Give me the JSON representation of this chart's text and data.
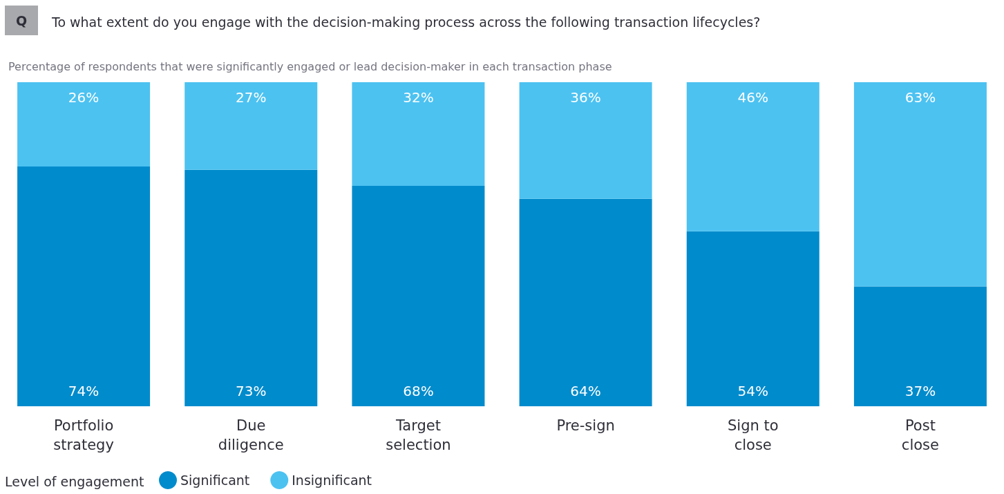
{
  "chart_data": {
    "type": "bar",
    "stacked": true,
    "title": "To what extent do you engage with the decision-making process across the following transaction lifecycles?",
    "subtitle": "Percentage of respondents that were significantly engaged or lead decision-maker in each transaction phase",
    "annotations": [
      "Q"
    ],
    "categories": [
      "Portfolio\nstrategy",
      "Due\ndiligence",
      "Target\nselection",
      "Pre-sign",
      "Sign to\nclose",
      "Post\nclose"
    ],
    "legend_title": "Level of engagement",
    "legend": "bottom left",
    "series": [
      {
        "name": "Significant",
        "color": "#008bcc",
        "values": [
          74,
          73,
          68,
          64,
          54,
          37
        ],
        "value_labels": [
          "74%",
          "73%",
          "68%",
          "64%",
          "54%",
          "37%"
        ]
      },
      {
        "name": "Insignificant",
        "color": "#4cc2f1",
        "values": [
          26,
          27,
          32,
          36,
          46,
          63
        ],
        "value_labels": [
          "26%",
          "27%",
          "32%",
          "36%",
          "46%",
          "63%"
        ]
      }
    ]
  }
}
